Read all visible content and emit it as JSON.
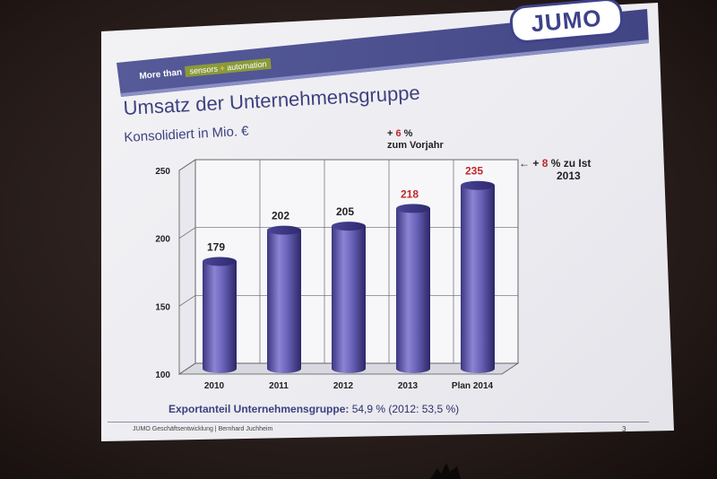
{
  "logo": "JUMO",
  "banner": {
    "more_than": "More than",
    "sensors": "sensors",
    "plus": "+",
    "automation": "automation"
  },
  "title": "Umsatz der Unternehmensgruppe",
  "subtitle": "Konsolidiert in Mio. €",
  "annotations": {
    "yoy_prefix": "+ ",
    "yoy_pct": "6",
    "yoy_suffix": " %",
    "yoy_line2": "zum Vorjahr",
    "plan_prefix": "+ ",
    "plan_pct": "8",
    "plan_suffix": " % zu Ist",
    "plan_line2": "2013",
    "arrow": "←"
  },
  "export_label": "Exportanteil Unternehmensgruppe:",
  "export_value": "54,9 % (2012: 53,5 %)",
  "footer": "JUMO Geschäftsentwicklung | Bernhard Juchheim",
  "page_number": "3",
  "colors": {
    "accent": "#3d4180",
    "highlight": "#c0282c",
    "bar": "#6a62b8",
    "label_normal": "#222222"
  },
  "chart_data": {
    "type": "bar",
    "categories": [
      "2010",
      "2011",
      "2012",
      "2013",
      "Plan 2014"
    ],
    "values": [
      179,
      202,
      205,
      218,
      235
    ],
    "value_label_colors": [
      "#222222",
      "#222222",
      "#222222",
      "#c0282c",
      "#c0282c"
    ],
    "yticks": [
      100,
      150,
      200,
      250
    ],
    "ylim": [
      100,
      250
    ],
    "grid": true,
    "style": "3d-cylinder"
  }
}
